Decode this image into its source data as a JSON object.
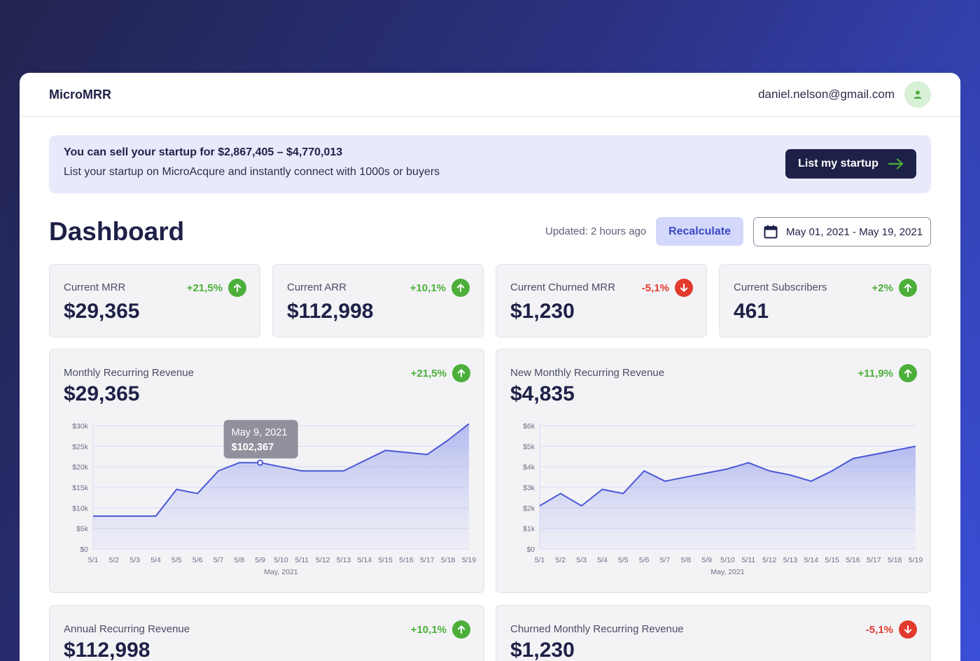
{
  "brand": "MicroMRR",
  "user": {
    "email": "daniel.nelson@gmail.com",
    "avatar_icon": "user-icon"
  },
  "banner": {
    "title": "You can sell your startup for $2,867,405 – $4,770,013",
    "subtitle": "List your startup on MicroAcqure and instantly connect with 1000s or buyers",
    "cta_label": "List my startup"
  },
  "dashboard": {
    "title": "Dashboard",
    "updated": "Updated: 2 hours ago",
    "recalc_label": "Recalculate",
    "date_range": "May 01, 2021 - May 19, 2021"
  },
  "colors": {
    "up": "#4caf3a",
    "down": "#e23b2e",
    "line": "#4a57d6",
    "accent": "#1e2147"
  },
  "stats": [
    {
      "label": "Current MRR",
      "value": "$29,365",
      "delta": "+21,5%",
      "trend": "up"
    },
    {
      "label": "Current ARR",
      "value": "$112,998",
      "delta": "+10,1%",
      "trend": "up"
    },
    {
      "label": "Current Churned MRR",
      "value": "$1,230",
      "delta": "-5,1%",
      "trend": "down"
    },
    {
      "label": "Current Subscribers",
      "value": "461",
      "delta": "+2%",
      "trend": "up"
    }
  ],
  "charts": [
    {
      "label": "Monthly Recurring Revenue",
      "value": "$29,365",
      "delta": "+21,5%",
      "trend": "up"
    },
    {
      "label": "New Monthly Recurring Revenue",
      "value": "$4,835",
      "delta": "+11,9%",
      "trend": "up"
    },
    {
      "label": "Annual Recurring Revenue",
      "value": "$112,998",
      "delta": "+10,1%",
      "trend": "up"
    },
    {
      "label": "Churned Monthly Recurring Revenue",
      "value": "$1,230",
      "delta": "-5,1%",
      "trend": "down"
    }
  ],
  "tooltip": {
    "date": "May 9, 2021",
    "value": "$102,367"
  },
  "chart_data": [
    {
      "type": "area",
      "title": "Monthly Recurring Revenue",
      "xlabel": "May, 2021",
      "categories": [
        "5/1",
        "5/2",
        "5/3",
        "5/4",
        "5/5",
        "5/6",
        "5/7",
        "5/8",
        "5/9",
        "5/10",
        "5/11",
        "5/12",
        "5/13",
        "5/14",
        "5/15",
        "5/16",
        "5/17",
        "5/18",
        "5/19"
      ],
      "yticks": [
        "$0",
        "$5k",
        "$10k",
        "$15k",
        "$20k",
        "$25k",
        "$30k"
      ],
      "ylim": [
        0,
        30000
      ],
      "values": [
        8000,
        8000,
        8000,
        8000,
        14500,
        13500,
        19000,
        21000,
        21000,
        20000,
        19000,
        19000,
        19000,
        21500,
        24000,
        23500,
        23000,
        26500,
        30500
      ],
      "highlight_index": 8,
      "grid": true
    },
    {
      "type": "area",
      "title": "New Monthly Recurring Revenue",
      "xlabel": "May, 2021",
      "categories": [
        "5/1",
        "5/2",
        "5/3",
        "5/4",
        "5/5",
        "5/6",
        "5/7",
        "5/8",
        "5/9",
        "5/10",
        "5/11",
        "5/12",
        "5/13",
        "5/14",
        "5/15",
        "5/16",
        "5/17",
        "5/18",
        "5/19"
      ],
      "yticks": [
        "$0",
        "$1k",
        "$2k",
        "$3k",
        "$4k",
        "$5k",
        "$6k"
      ],
      "ylim": [
        0,
        6000
      ],
      "values": [
        2100,
        2700,
        2100,
        2900,
        2700,
        3800,
        3300,
        3500,
        3700,
        3900,
        4200,
        3800,
        3600,
        3300,
        3800,
        4400,
        4600,
        4800,
        5000
      ],
      "grid": true
    }
  ]
}
